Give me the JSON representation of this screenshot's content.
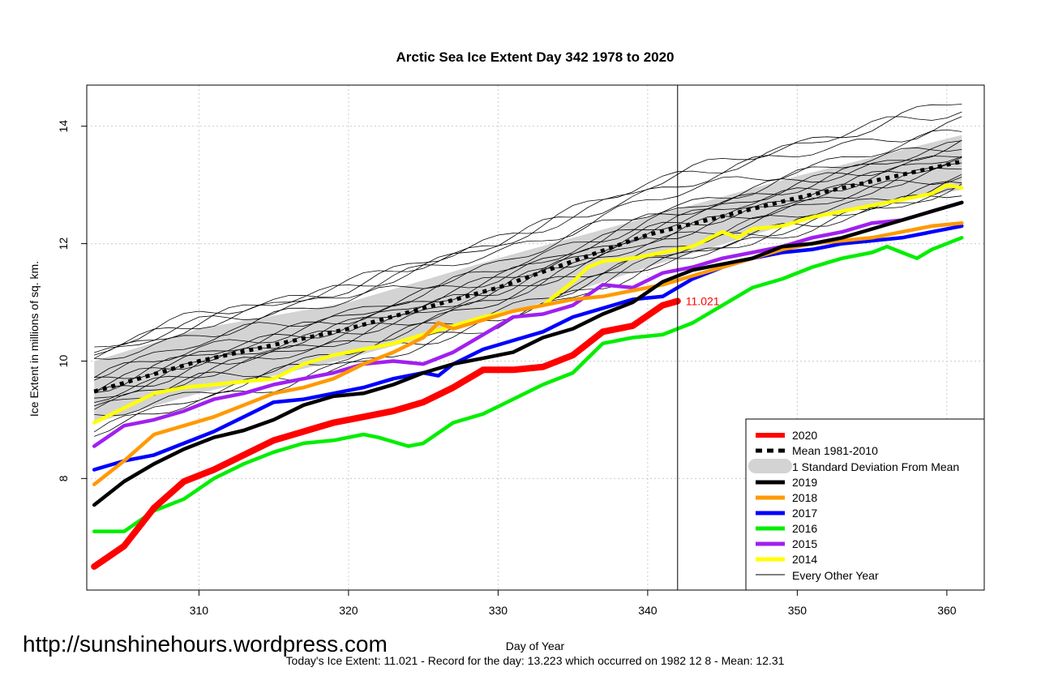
{
  "page": {
    "url_text": "http://sunshinehours.wordpress.com",
    "caption": "Today's Ice Extent: 11.021  - Record for the day: 13.223 which occurred on 1982 12 8  - Mean: 12.31"
  },
  "chart_data": {
    "type": "line",
    "title": "Arctic Sea Ice Extent Day 342 1978 to 2020",
    "xlabel": "Day of Year",
    "ylabel": "Ice Extent in millions of sq. km.",
    "xlim": [
      302.5,
      362.5
    ],
    "ylim": [
      6.1,
      14.7
    ],
    "x_ticks": [
      310,
      320,
      330,
      340,
      350,
      360
    ],
    "y_ticks": [
      8,
      10,
      12,
      14
    ],
    "grid": true,
    "vline_day": 342,
    "end_label": "11.021",
    "end_label_color": "#ff0000",
    "legend_position": "bottom-right",
    "legend": [
      {
        "label": "2020",
        "style": "thick-red"
      },
      {
        "label": "Mean 1981-2010",
        "style": "dotted-black"
      },
      {
        "label": "1 Standard Deviation From Mean",
        "style": "grey-band"
      },
      {
        "label": "2019",
        "style": "black"
      },
      {
        "label": "2018",
        "style": "orange"
      },
      {
        "label": "2017",
        "style": "blue"
      },
      {
        "label": "2016",
        "style": "green"
      },
      {
        "label": "2015",
        "style": "purple"
      },
      {
        "label": "2014",
        "style": "yellow"
      },
      {
        "label": "Every Other Year",
        "style": "thin-black"
      }
    ],
    "colors": {
      "2020": "#ff0000",
      "2019": "#000000",
      "2018": "#ff9900",
      "2017": "#0000ff",
      "2016": "#00ee00",
      "2015": "#a020f0",
      "2014": "#ffff00",
      "band": "#d3d3d3",
      "mean": "#000000",
      "other": "#000000",
      "grid": "#cccccc"
    },
    "mean": {
      "x": [
        303,
        310,
        320,
        330,
        340,
        350,
        361
      ],
      "y": [
        9.48,
        10.0,
        10.55,
        11.25,
        12.15,
        12.78,
        13.4
      ]
    },
    "band": {
      "x": [
        303,
        310,
        320,
        330,
        340,
        350,
        361
      ],
      "upper": [
        10.0,
        10.55,
        11.0,
        11.75,
        12.45,
        13.15,
        13.85
      ],
      "lower": [
        8.95,
        9.45,
        10.05,
        10.75,
        11.6,
        12.38,
        12.92
      ]
    },
    "series": [
      {
        "name": "2020",
        "x": [
          303,
          305,
          307,
          309,
          311,
          313,
          315,
          317,
          319,
          321,
          323,
          325,
          327,
          329,
          331,
          333,
          335,
          337,
          339,
          341,
          342
        ],
        "y": [
          6.5,
          6.85,
          7.5,
          7.95,
          8.15,
          8.4,
          8.65,
          8.8,
          8.95,
          9.05,
          9.15,
          9.3,
          9.55,
          9.85,
          9.85,
          9.9,
          10.1,
          10.5,
          10.6,
          10.95,
          11.021
        ]
      },
      {
        "name": "2019",
        "x": [
          303,
          305,
          307,
          309,
          311,
          313,
          315,
          317,
          319,
          321,
          323,
          325,
          327,
          329,
          331,
          333,
          335,
          337,
          339,
          341,
          343,
          345,
          347,
          349,
          351,
          353,
          355,
          357,
          359,
          361
        ],
        "y": [
          7.55,
          7.95,
          8.25,
          8.5,
          8.7,
          8.82,
          9.0,
          9.25,
          9.4,
          9.45,
          9.6,
          9.8,
          9.95,
          10.05,
          10.15,
          10.4,
          10.55,
          10.8,
          11.0,
          11.35,
          11.55,
          11.65,
          11.75,
          11.95,
          12.0,
          12.1,
          12.25,
          12.4,
          12.55,
          12.7
        ]
      },
      {
        "name": "2018",
        "x": [
          303,
          305,
          307,
          309,
          311,
          313,
          315,
          317,
          319,
          321,
          323,
          325,
          326,
          327,
          329,
          331,
          333,
          335,
          337,
          339,
          341,
          343,
          345,
          347,
          349,
          351,
          353,
          355,
          357,
          359,
          361
        ],
        "y": [
          7.9,
          8.3,
          8.75,
          8.9,
          9.05,
          9.25,
          9.45,
          9.55,
          9.7,
          9.95,
          10.15,
          10.4,
          10.65,
          10.55,
          10.7,
          10.85,
          10.95,
          11.05,
          11.1,
          11.2,
          11.3,
          11.45,
          11.6,
          11.75,
          11.9,
          12.0,
          12.05,
          12.1,
          12.2,
          12.3,
          12.35
        ]
      },
      {
        "name": "2017",
        "x": [
          303,
          305,
          307,
          309,
          311,
          313,
          315,
          317,
          319,
          321,
          323,
          325,
          326,
          327,
          329,
          331,
          333,
          335,
          337,
          339,
          341,
          343,
          345,
          347,
          349,
          351,
          353,
          355,
          357,
          359,
          361
        ],
        "y": [
          8.15,
          8.3,
          8.4,
          8.6,
          8.8,
          9.05,
          9.3,
          9.35,
          9.45,
          9.55,
          9.7,
          9.8,
          9.75,
          9.95,
          10.2,
          10.35,
          10.5,
          10.75,
          10.9,
          11.05,
          11.1,
          11.4,
          11.6,
          11.75,
          11.85,
          11.9,
          12.0,
          12.05,
          12.1,
          12.2,
          12.3
        ]
      },
      {
        "name": "2016",
        "x": [
          303,
          305,
          307,
          309,
          311,
          313,
          315,
          317,
          319,
          321,
          322,
          324,
          325,
          327,
          329,
          331,
          333,
          335,
          337,
          339,
          341,
          343,
          345,
          347,
          349,
          351,
          353,
          355,
          356,
          357,
          358,
          359,
          361
        ],
        "y": [
          7.1,
          7.1,
          7.45,
          7.65,
          8.0,
          8.25,
          8.45,
          8.6,
          8.65,
          8.75,
          8.7,
          8.55,
          8.6,
          8.95,
          9.1,
          9.35,
          9.6,
          9.8,
          10.3,
          10.4,
          10.45,
          10.65,
          10.95,
          11.25,
          11.4,
          11.6,
          11.75,
          11.85,
          11.95,
          11.85,
          11.75,
          11.9,
          12.1
        ]
      },
      {
        "name": "2015",
        "x": [
          303,
          305,
          307,
          309,
          311,
          313,
          315,
          317,
          319,
          321,
          323,
          325,
          327,
          329,
          331,
          333,
          335,
          337,
          339,
          341,
          343,
          345,
          347,
          349,
          351,
          353,
          355,
          357,
          359,
          361
        ],
        "y": [
          8.55,
          8.9,
          9.0,
          9.15,
          9.35,
          9.45,
          9.6,
          9.7,
          9.8,
          9.95,
          10.0,
          9.95,
          10.15,
          10.45,
          10.75,
          10.8,
          10.95,
          11.3,
          11.25,
          11.5,
          11.6,
          11.75,
          11.85,
          11.95,
          12.1,
          12.2,
          12.35,
          12.4,
          12.55,
          12.7
        ]
      },
      {
        "name": "2014",
        "x": [
          303,
          305,
          307,
          309,
          311,
          313,
          315,
          317,
          319,
          321,
          323,
          325,
          327,
          329,
          331,
          333,
          335,
          336,
          337,
          339,
          341,
          343,
          345,
          346,
          347,
          349,
          351,
          353,
          355,
          357,
          359,
          360,
          361
        ],
        "y": [
          8.95,
          9.2,
          9.45,
          9.55,
          9.6,
          9.65,
          9.7,
          9.95,
          10.1,
          10.2,
          10.3,
          10.45,
          10.6,
          10.75,
          10.85,
          10.95,
          11.35,
          11.6,
          11.7,
          11.75,
          11.85,
          11.95,
          12.2,
          12.1,
          12.25,
          12.3,
          12.45,
          12.55,
          12.65,
          12.75,
          12.85,
          13.0,
          12.95
        ]
      }
    ]
  }
}
